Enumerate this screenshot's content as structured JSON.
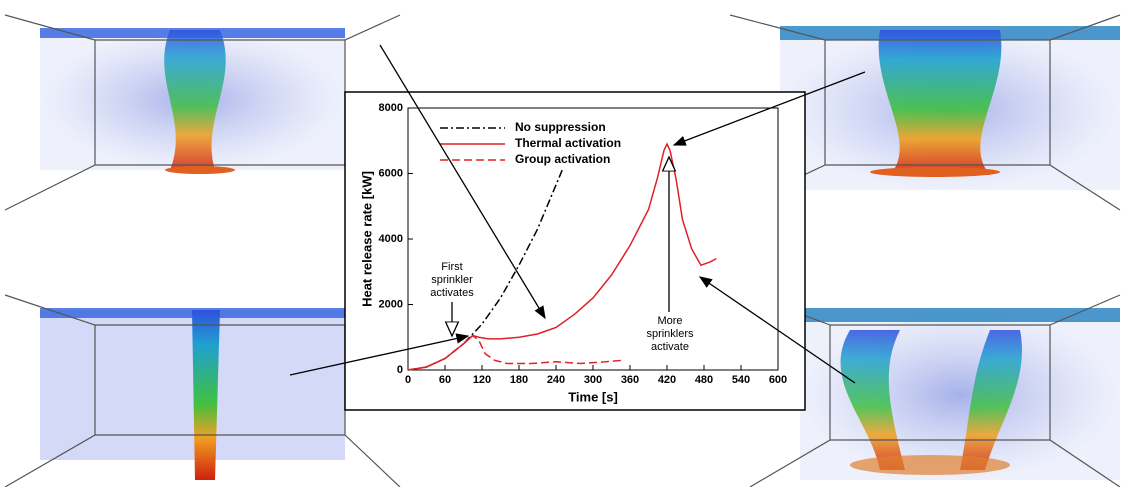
{
  "chart_data": {
    "type": "line",
    "xlabel": "Time [s]",
    "ylabel": "Heat release rate [kW]",
    "xlim": [
      0,
      600
    ],
    "xticks": [
      0,
      60,
      120,
      180,
      240,
      300,
      360,
      420,
      480,
      540,
      600
    ],
    "ylim": [
      0,
      8000
    ],
    "yticks": [
      0,
      2000,
      4000,
      6000,
      8000
    ],
    "legend": "upper left",
    "series": [
      {
        "name": "No suppression",
        "color": "#000000",
        "linestyle": "dashdot",
        "x": [
          0,
          30,
          60,
          90,
          120,
          150,
          180,
          210,
          240,
          250
        ],
        "values": [
          0,
          90,
          350,
          800,
          1400,
          2200,
          3200,
          4300,
          5650,
          6100
        ]
      },
      {
        "name": "Thermal activation",
        "color": "#e0202a",
        "linestyle": "solid",
        "x": [
          0,
          30,
          60,
          90,
          105,
          115,
          130,
          150,
          180,
          210,
          240,
          270,
          300,
          330,
          360,
          390,
          405,
          415,
          420,
          425,
          435,
          445,
          460,
          475,
          490,
          500
        ],
        "values": [
          0,
          90,
          350,
          800,
          1050,
          1000,
          950,
          950,
          1000,
          1100,
          1300,
          1700,
          2200,
          2900,
          3800,
          4900,
          5900,
          6700,
          6900,
          6700,
          5800,
          4600,
          3700,
          3200,
          3300,
          3400
        ]
      },
      {
        "name": "Group activation",
        "color": "#e0202a",
        "linestyle": "dashed",
        "x": [
          0,
          30,
          60,
          90,
          105,
          115,
          125,
          140,
          160,
          200,
          240,
          280,
          320,
          350
        ],
        "values": [
          0,
          90,
          350,
          800,
          1050,
          900,
          500,
          300,
          200,
          200,
          250,
          200,
          250,
          300
        ]
      }
    ],
    "annotations": [
      "First sprinkler activates",
      "More sprinklers activate"
    ]
  }
}
